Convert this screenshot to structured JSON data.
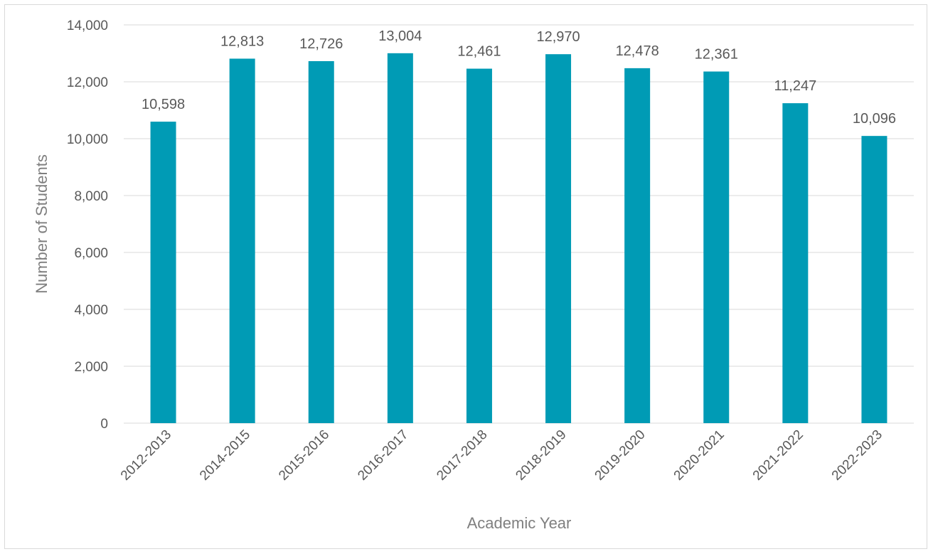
{
  "chart_data": {
    "type": "bar",
    "title": "",
    "xlabel": "Academic Year",
    "ylabel": "Number of Students",
    "categories": [
      "2012-2013",
      "2014-2015",
      "2015-2016",
      "2016-2017",
      "2017-2018",
      "2018-2019",
      "2019-2020",
      "2020-2021",
      "2021-2022",
      "2022-2023"
    ],
    "values": [
      10598,
      12813,
      12726,
      13004,
      12461,
      12970,
      12478,
      12361,
      11247,
      10096
    ],
    "data_labels": [
      "10,598",
      "12,813",
      "12,726",
      "13,004",
      "12,461",
      "12,970",
      "12,478",
      "12,361",
      "11,247",
      "10,096"
    ],
    "ylim": [
      0,
      14000
    ],
    "yticks": [
      0,
      2000,
      4000,
      6000,
      8000,
      10000,
      12000,
      14000
    ],
    "ytick_labels": [
      "0",
      "2,000",
      "4,000",
      "6,000",
      "8,000",
      "10,000",
      "12,000",
      "14,000"
    ],
    "grid": true,
    "legend": "none",
    "colors": {
      "bar": "#009BB5",
      "grid": "#d9d9d9",
      "text": "#595959",
      "axis_title": "#7f7f7f"
    }
  }
}
